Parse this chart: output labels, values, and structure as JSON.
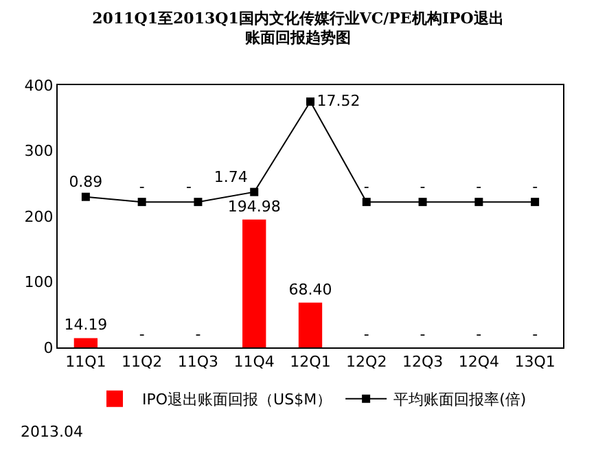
{
  "chart_data": {
    "type": "bar",
    "title": "2011Q1至2013Q1国内文化传媒行业VC/PE机构IPO退出账面回报趋势图",
    "categories": [
      "11Q1",
      "11Q2",
      "11Q3",
      "11Q4",
      "12Q1",
      "12Q2",
      "12Q3",
      "12Q4",
      "13Q1"
    ],
    "series": [
      {
        "name": "IPO退出账面回报（US$M）",
        "color": "#ff0000",
        "values": [
          14.19,
          0,
          0,
          194.98,
          68.4,
          0,
          0,
          0,
          0
        ],
        "value_labels": [
          "14.19",
          "-",
          "-",
          "194.98",
          "68.40",
          "-",
          "-",
          "-",
          "-"
        ]
      },
      {
        "name": "平均账面回报率(倍)",
        "type": "line",
        "axis": "y2",
        "color": "#000000",
        "marker": "square",
        "values": [
          0.89,
          0,
          0,
          1.74,
          17.52,
          0,
          0,
          0,
          0
        ],
        "value_labels": [
          "0.89",
          "-",
          "-",
          "1.74",
          "17.52",
          "-",
          "-",
          "-",
          "-"
        ]
      }
    ],
    "ylim": [
      0,
      400
    ],
    "yticks": [
      0,
      100,
      200,
      300,
      400
    ],
    "y2lim": [
      -25.4,
      20.4
    ],
    "tick_labels": [
      "x",
      "y"
    ],
    "legend": "bottom",
    "annotations": [
      "2013.04"
    ]
  }
}
